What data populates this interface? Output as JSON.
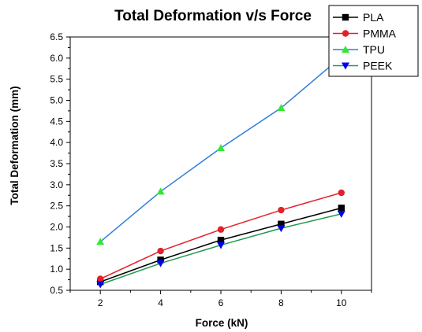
{
  "chart_data": {
    "type": "line",
    "title": "Total Deformation v/s Force",
    "xlabel": "Force (kN)",
    "ylabel": "Total Deformation (mm)",
    "x": [
      2,
      4,
      6,
      8,
      10
    ],
    "xlim": [
      1,
      11
    ],
    "ylim": [
      0.5,
      6.5
    ],
    "xticks": [
      "2",
      "4",
      "6",
      "8",
      "10"
    ],
    "yticks": [
      "0.5",
      "1.0",
      "1.5",
      "2.0",
      "2.5",
      "3.0",
      "3.5",
      "4.0",
      "4.5",
      "5.0",
      "5.5",
      "6.0",
      "6.5"
    ],
    "grid": false,
    "legend_position": "top-right",
    "series": [
      {
        "name": "PLA",
        "values": [
          0.7,
          1.22,
          1.69,
          2.07,
          2.45
        ],
        "line_color": "#000000",
        "marker_color": "#000000",
        "marker": "square"
      },
      {
        "name": "PMMA",
        "values": [
          0.77,
          1.43,
          1.94,
          2.4,
          2.81
        ],
        "line_color": "#e3212b",
        "marker_color": "#e3212b",
        "marker": "circle"
      },
      {
        "name": "TPU",
        "values": [
          1.65,
          2.84,
          3.87,
          4.82,
          6.03
        ],
        "line_color": "#2f7fd8",
        "marker_color": "#33e633",
        "marker": "triangle-up"
      },
      {
        "name": "PEEK",
        "values": [
          0.64,
          1.14,
          1.57,
          1.97,
          2.31
        ],
        "line_color": "#1e9a4a",
        "marker_color": "#0000ee",
        "marker": "triangle-down"
      }
    ]
  }
}
